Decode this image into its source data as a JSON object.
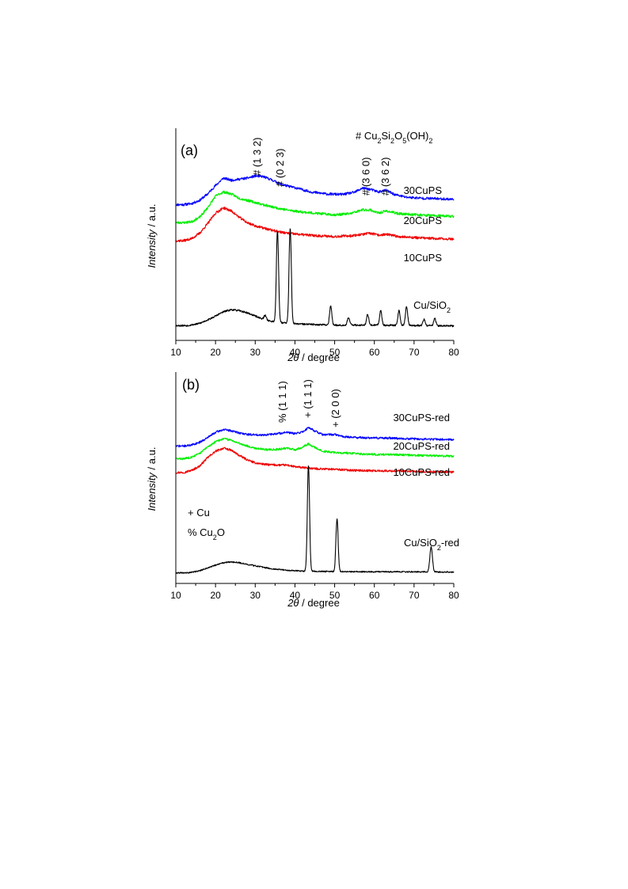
{
  "chart_data": [
    {
      "panel_label": "(a)",
      "type": "line",
      "xlabel": {
        "italic": "2θ",
        "rest": " / degree"
      },
      "ylabel": {
        "italic": "Intensity",
        "rest": " / a.u."
      },
      "xlim": [
        10,
        80
      ],
      "xticks": [
        "10",
        "20",
        "30",
        "40",
        "50",
        "60",
        "70",
        "80"
      ],
      "ylim": [
        0,
        1
      ],
      "legend_note": {
        "text": "# Cu",
        "sub1": "2",
        "mid1": "Si",
        "sub2": "2",
        "mid2": "O",
        "sub3": "5",
        "mid3": "(OH)",
        "sub4": "2"
      },
      "series": [
        {
          "name": "30CuPS",
          "color": "#0000ff",
          "noise": 0.006,
          "seed": 11,
          "points": [
            [
              10,
              0.64
            ],
            [
              12,
              0.64
            ],
            [
              14,
              0.645
            ],
            [
              16,
              0.66
            ],
            [
              18,
              0.69
            ],
            [
              20,
              0.73
            ],
            [
              22,
              0.765
            ],
            [
              24,
              0.755
            ],
            [
              26,
              0.76
            ],
            [
              28,
              0.765
            ],
            [
              30,
              0.775
            ],
            [
              32,
              0.772
            ],
            [
              34,
              0.758
            ],
            [
              36,
              0.74
            ],
            [
              38,
              0.728
            ],
            [
              40,
              0.72
            ],
            [
              44,
              0.7
            ],
            [
              48,
              0.69
            ],
            [
              52,
              0.688
            ],
            [
              55,
              0.698
            ],
            [
              57,
              0.718
            ],
            [
              59,
              0.712
            ],
            [
              61,
              0.7
            ],
            [
              63,
              0.708
            ],
            [
              65,
              0.688
            ],
            [
              68,
              0.675
            ],
            [
              72,
              0.67
            ],
            [
              76,
              0.668
            ],
            [
              80,
              0.665
            ]
          ]
        },
        {
          "name": "20CuPS",
          "color": "#00ee00",
          "noise": 0.006,
          "seed": 23,
          "points": [
            [
              10,
              0.555
            ],
            [
              12,
              0.555
            ],
            [
              14,
              0.56
            ],
            [
              16,
              0.58
            ],
            [
              18,
              0.625
            ],
            [
              20,
              0.68
            ],
            [
              22,
              0.7
            ],
            [
              24,
              0.69
            ],
            [
              26,
              0.67
            ],
            [
              28,
              0.66
            ],
            [
              30,
              0.65
            ],
            [
              32,
              0.64
            ],
            [
              34,
              0.63
            ],
            [
              38,
              0.615
            ],
            [
              42,
              0.605
            ],
            [
              46,
              0.598
            ],
            [
              50,
              0.592
            ],
            [
              54,
              0.598
            ],
            [
              57,
              0.615
            ],
            [
              59,
              0.615
            ],
            [
              61,
              0.6
            ],
            [
              63,
              0.61
            ],
            [
              66,
              0.598
            ],
            [
              70,
              0.593
            ],
            [
              75,
              0.588
            ],
            [
              80,
              0.585
            ]
          ]
        },
        {
          "name": "10CuPS",
          "color": "#ee0000",
          "noise": 0.006,
          "seed": 37,
          "points": [
            [
              10,
              0.47
            ],
            [
              12,
              0.47
            ],
            [
              14,
              0.48
            ],
            [
              16,
              0.505
            ],
            [
              18,
              0.55
            ],
            [
              20,
              0.6
            ],
            [
              22,
              0.625
            ],
            [
              24,
              0.61
            ],
            [
              26,
              0.58
            ],
            [
              28,
              0.555
            ],
            [
              30,
              0.54
            ],
            [
              32,
              0.53
            ],
            [
              34,
              0.52
            ],
            [
              38,
              0.505
            ],
            [
              42,
              0.498
            ],
            [
              46,
              0.493
            ],
            [
              50,
              0.49
            ],
            [
              54,
              0.493
            ],
            [
              57,
              0.5
            ],
            [
              59,
              0.505
            ],
            [
              61,
              0.496
            ],
            [
              63,
              0.5
            ],
            [
              66,
              0.49
            ],
            [
              70,
              0.485
            ],
            [
              75,
              0.48
            ],
            [
              80,
              0.478
            ]
          ]
        },
        {
          "name": "Cu/SiO₂",
          "color": "#000000",
          "noise": 0.004,
          "seed": 53,
          "points": [
            [
              10,
              0.07
            ],
            [
              13,
              0.07
            ],
            [
              16,
              0.08
            ],
            [
              19,
              0.105
            ],
            [
              22,
              0.135
            ],
            [
              24,
              0.145
            ],
            [
              26,
              0.14
            ],
            [
              28,
              0.13
            ],
            [
              30,
              0.115
            ],
            [
              32,
              0.1
            ],
            [
              34,
              0.09
            ],
            [
              36,
              0.085
            ],
            [
              40,
              0.078
            ],
            [
              50,
              0.072
            ],
            [
              60,
              0.072
            ],
            [
              70,
              0.07
            ],
            [
              80,
              0.068
            ]
          ],
          "peaks": [
            [
              32.5,
              0.02,
              0.3
            ],
            [
              35.6,
              0.43,
              0.28
            ],
            [
              38.8,
              0.45,
              0.28
            ],
            [
              49.0,
              0.09,
              0.28
            ],
            [
              53.5,
              0.035,
              0.3
            ],
            [
              58.3,
              0.05,
              0.28
            ],
            [
              61.6,
              0.07,
              0.28
            ],
            [
              66.2,
              0.07,
              0.28
            ],
            [
              68.1,
              0.09,
              0.28
            ],
            [
              72.5,
              0.03,
              0.28
            ],
            [
              75.2,
              0.035,
              0.28
            ]
          ]
        }
      ],
      "series_labels": [
        {
          "text": "30CuPS",
          "sub": "",
          "after": ""
        },
        {
          "text": "20CuPS",
          "sub": "",
          "after": ""
        },
        {
          "text": "10CuPS",
          "sub": "",
          "after": ""
        },
        {
          "text": "Cu/SiO",
          "sub": "2",
          "after": ""
        }
      ],
      "annotations": [
        {
          "text": "# (1 3 2)",
          "x": 30.5
        },
        {
          "text": "# (0 2 3)",
          "x": 36.3
        },
        {
          "text": "# (3 6 0)",
          "x": 58.0
        },
        {
          "text": "# (3 6 2)",
          "x": 62.8
        }
      ]
    },
    {
      "panel_label": "(b)",
      "type": "line",
      "xlabel": {
        "italic": "2θ",
        "rest": " / degree"
      },
      "ylabel": {
        "italic": "Intensity",
        "rest": " / a.u."
      },
      "xlim": [
        10,
        80
      ],
      "xticks": [
        "10",
        "20",
        "30",
        "40",
        "50",
        "60",
        "70",
        "80"
      ],
      "ylim": [
        0,
        1
      ],
      "legend": [
        {
          "text": "+ Cu",
          "sub": "",
          "after": ""
        },
        {
          "text": "% Cu",
          "sub": "2",
          "after": "O"
        }
      ],
      "series": [
        {
          "name": "30CuPS-red",
          "color": "#0000ff",
          "noise": 0.005,
          "seed": 71,
          "points": [
            [
              10,
              0.65
            ],
            [
              12,
              0.65
            ],
            [
              14,
              0.655
            ],
            [
              16,
              0.668
            ],
            [
              18,
              0.69
            ],
            [
              20,
              0.715
            ],
            [
              22,
              0.728
            ],
            [
              24,
              0.722
            ],
            [
              26,
              0.712
            ],
            [
              28,
              0.705
            ],
            [
              30,
              0.703
            ],
            [
              33,
              0.703
            ],
            [
              36,
              0.71
            ],
            [
              38,
              0.715
            ],
            [
              40,
              0.708
            ],
            [
              42,
              0.718
            ],
            [
              43.5,
              0.738
            ],
            [
              45,
              0.722
            ],
            [
              47,
              0.703
            ],
            [
              50,
              0.705
            ],
            [
              52,
              0.695
            ],
            [
              56,
              0.69
            ],
            [
              60,
              0.688
            ],
            [
              65,
              0.687
            ],
            [
              70,
              0.684
            ],
            [
              75,
              0.682
            ],
            [
              80,
              0.68
            ]
          ]
        },
        {
          "name": "20CuPS-red",
          "color": "#00ee00",
          "noise": 0.005,
          "seed": 83,
          "points": [
            [
              10,
              0.59
            ],
            [
              12,
              0.59
            ],
            [
              14,
              0.598
            ],
            [
              16,
              0.615
            ],
            [
              18,
              0.645
            ],
            [
              20,
              0.67
            ],
            [
              22,
              0.685
            ],
            [
              24,
              0.678
            ],
            [
              26,
              0.663
            ],
            [
              28,
              0.65
            ],
            [
              30,
              0.64
            ],
            [
              33,
              0.633
            ],
            [
              36,
              0.635
            ],
            [
              38,
              0.64
            ],
            [
              40,
              0.632
            ],
            [
              42,
              0.645
            ],
            [
              43.3,
              0.66
            ],
            [
              45,
              0.643
            ],
            [
              47,
              0.625
            ],
            [
              50,
              0.62
            ],
            [
              54,
              0.615
            ],
            [
              60,
              0.61
            ],
            [
              65,
              0.61
            ],
            [
              70,
              0.606
            ],
            [
              75,
              0.604
            ],
            [
              80,
              0.602
            ]
          ]
        },
        {
          "name": "10CuPS-red",
          "color": "#ee0000",
          "noise": 0.005,
          "seed": 97,
          "points": [
            [
              10,
              0.525
            ],
            [
              12,
              0.525
            ],
            [
              14,
              0.535
            ],
            [
              16,
              0.555
            ],
            [
              18,
              0.595
            ],
            [
              20,
              0.625
            ],
            [
              22,
              0.64
            ],
            [
              24,
              0.63
            ],
            [
              26,
              0.605
            ],
            [
              28,
              0.585
            ],
            [
              30,
              0.57
            ],
            [
              33,
              0.562
            ],
            [
              36,
              0.56
            ],
            [
              38,
              0.56
            ],
            [
              40,
              0.552
            ],
            [
              42,
              0.548
            ],
            [
              45,
              0.543
            ],
            [
              50,
              0.54
            ],
            [
              55,
              0.535
            ],
            [
              60,
              0.533
            ],
            [
              65,
              0.532
            ],
            [
              70,
              0.53
            ],
            [
              75,
              0.528
            ],
            [
              80,
              0.527
            ]
          ]
        },
        {
          "name": "Cu/SiO₂-red",
          "color": "#000000",
          "noise": 0.003,
          "seed": 109,
          "points": [
            [
              10,
              0.05
            ],
            [
              13,
              0.05
            ],
            [
              16,
              0.06
            ],
            [
              19,
              0.08
            ],
            [
              22,
              0.098
            ],
            [
              24,
              0.102
            ],
            [
              26,
              0.098
            ],
            [
              28,
              0.09
            ],
            [
              31,
              0.08
            ],
            [
              34,
              0.07
            ],
            [
              38,
              0.062
            ],
            [
              42,
              0.058
            ],
            [
              50,
              0.056
            ],
            [
              60,
              0.055
            ],
            [
              70,
              0.055
            ],
            [
              80,
              0.054
            ]
          ],
          "peaks": [
            [
              43.4,
              0.5,
              0.28
            ],
            [
              50.6,
              0.25,
              0.28
            ],
            [
              74.3,
              0.12,
              0.32
            ]
          ]
        }
      ],
      "series_labels": [
        {
          "text": "30CuPS-red",
          "sub": "",
          "after": ""
        },
        {
          "text": "20CuPS-red",
          "sub": "",
          "after": ""
        },
        {
          "text": "10CuPS-red",
          "sub": "",
          "after": ""
        },
        {
          "text": "Cu/SiO",
          "sub": "2",
          "after": "-red"
        }
      ],
      "annotations": [
        {
          "text": "% (1 1 1)",
          "x": 36.9
        },
        {
          "text": "+ (1 1 1)",
          "x": 43.3
        },
        {
          "text": "+ (2 0 0)",
          "x": 50.3
        }
      ]
    }
  ]
}
